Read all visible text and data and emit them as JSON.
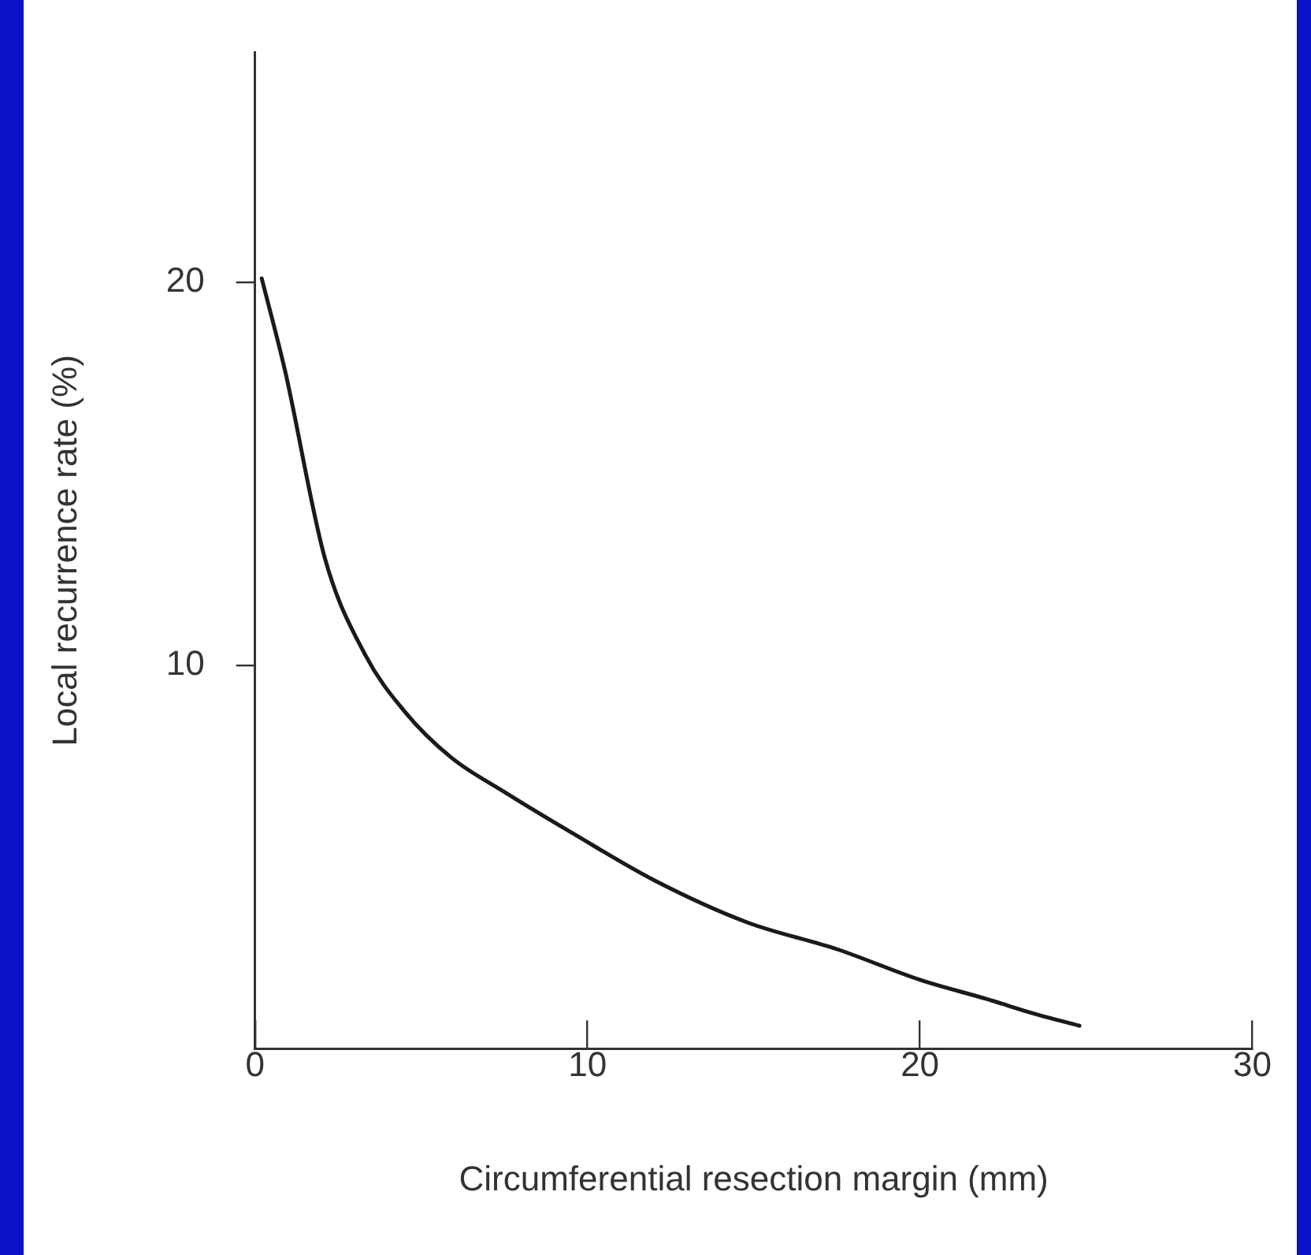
{
  "chart_data": {
    "type": "line",
    "xlabel": "Circumferential resection margin (mm)",
    "ylabel": "Local recurrence rate (%)",
    "x": [
      0.2,
      0.9,
      2.1,
      3.3,
      4.5,
      5.9,
      7.5,
      9.6,
      12,
      14.8,
      17.5,
      20,
      22,
      23.5,
      24.8
    ],
    "series": [
      {
        "color": "#1a1a1a",
        "values": [
          20.1,
          17.7,
          12.8,
          10.3,
          8.8,
          7.6,
          6.7,
          5.6,
          4.4,
          3.3,
          2.6,
          1.8,
          1.3,
          0.9,
          0.6
        ]
      }
    ],
    "xlim": [
      0,
      30
    ],
    "xticks": [
      0,
      10,
      20,
      30
    ],
    "ylim": [
      0,
      26
    ],
    "yticks": [
      10,
      20
    ],
    "grid": false,
    "legend": false,
    "marker": "none",
    "line_style": "solid"
  }
}
